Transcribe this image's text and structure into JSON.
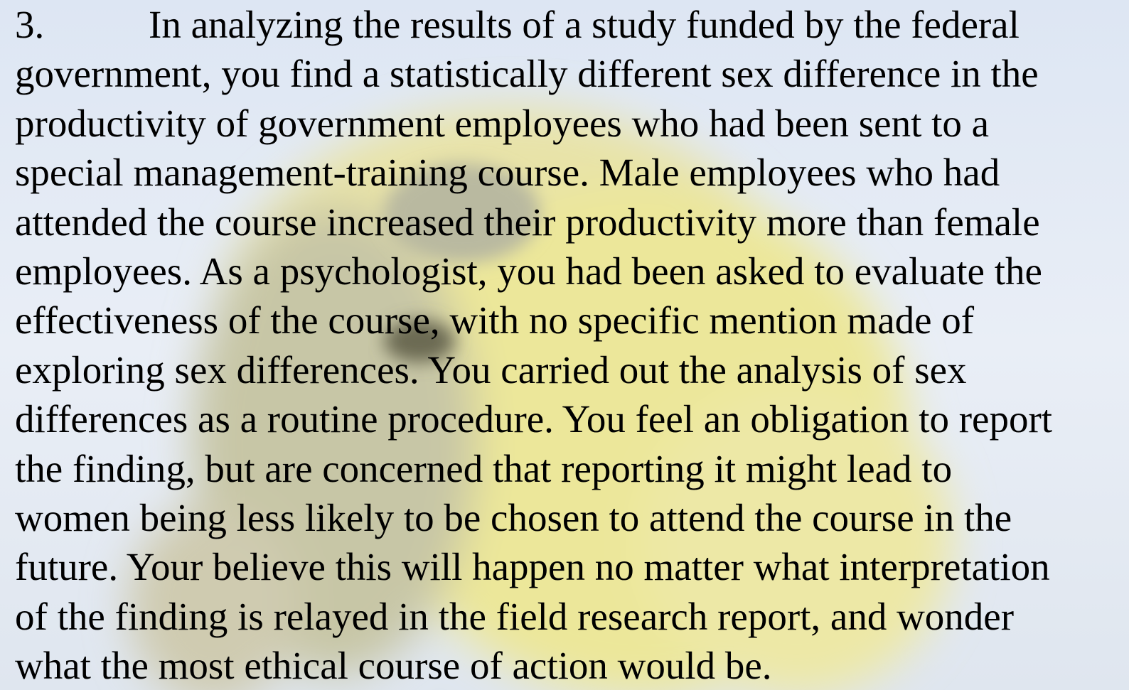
{
  "item": {
    "number": "3.",
    "lines": [
      "In analyzing the results of a study funded by the federal",
      "government, you find a statistically different sex difference in the",
      "productivity of government employees who had been sent to a",
      "special management-training course. Male employees who had",
      "attended the course increased their productivity more than female",
      "employees. As a psychologist, you had been asked to evaluate the",
      "effectiveness of the course, with no specific mention made of",
      "exploring sex differences. You carried out the analysis of sex",
      "differences as a routine procedure. You feel an obligation to report",
      "the finding, but are concerned that reporting it might lead to",
      "women being less likely to be chosen to attend the course in the",
      "future. Your believe this will happen no matter what interpretation",
      "of the finding is relayed in the field research report, and wonder",
      "what the most ethical course of action would be."
    ]
  }
}
